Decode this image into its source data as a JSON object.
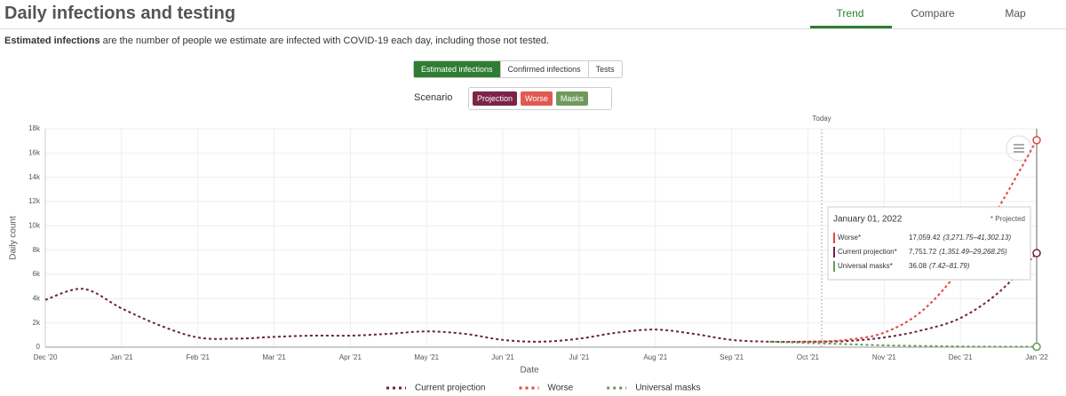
{
  "header": {
    "title": "Daily infections and testing",
    "tabs": [
      "Trend",
      "Compare",
      "Map"
    ]
  },
  "description": {
    "bold": "Estimated infections",
    "rest": " are the number of people we estimate are infected with COVID-19 each day, including those not tested."
  },
  "toggle": [
    "Estimated infections",
    "Confirmed infections",
    "Tests"
  ],
  "scenario": {
    "label": "Scenario",
    "chips": [
      {
        "text": "Projection",
        "color": "#7b2448"
      },
      {
        "text": "Worse",
        "color": "#e05a50"
      },
      {
        "text": "Masks",
        "color": "#6f9a5c"
      }
    ]
  },
  "chart_data": {
    "type": "line",
    "x_label": "Date",
    "y_label": "Daily count",
    "today_label": "Today",
    "x": [
      "Dec '20",
      null,
      "Jan '21",
      null,
      "Feb '21",
      null,
      "Mar '21",
      null,
      "Apr '21",
      null,
      "May '21",
      null,
      "Jun '21",
      null,
      "Jul '21",
      null,
      "Aug '21",
      null,
      "Sep '21",
      null,
      "Oct '21",
      null,
      "Nov '21",
      null,
      "Dec '21",
      null,
      "Jan '22"
    ],
    "ylim": [
      0,
      18000
    ],
    "yticks": [
      0,
      {
        "value": 2000,
        "label": "2k"
      },
      {
        "value": 4000,
        "label": "4k"
      },
      {
        "value": 6000,
        "label": "6k"
      },
      {
        "value": 8000,
        "label": "8k"
      },
      {
        "value": 10000,
        "label": "10k"
      },
      {
        "value": 12000,
        "label": "12k"
      },
      {
        "value": 14000,
        "label": "14k"
      },
      {
        "value": 16000,
        "label": "16k"
      },
      {
        "value": 18000,
        "label": "18k"
      }
    ],
    "grid": true,
    "series": [
      {
        "name": "Current projection",
        "color": "#6d2140",
        "values": [
          3900,
          4800,
          3200,
          1800,
          800,
          700,
          850,
          950,
          950,
          1100,
          1300,
          1100,
          600,
          450,
          700,
          1200,
          1450,
          1100,
          600,
          450,
          450,
          500,
          800,
          1400,
          2400,
          4500,
          7751.72
        ]
      },
      {
        "name": "Worse",
        "color": "#e0453f",
        "values": [
          null,
          null,
          null,
          null,
          null,
          null,
          null,
          null,
          null,
          null,
          null,
          null,
          null,
          null,
          null,
          null,
          null,
          null,
          null,
          450,
          450,
          600,
          1200,
          3000,
          6500,
          11500,
          17059.42
        ]
      },
      {
        "name": "Universal masks",
        "color": "#6a9a55",
        "values": [
          null,
          null,
          null,
          null,
          null,
          null,
          null,
          null,
          null,
          null,
          null,
          null,
          null,
          null,
          null,
          null,
          null,
          null,
          null,
          450,
          350,
          250,
          150,
          100,
          60,
          40,
          36.08
        ]
      }
    ]
  },
  "tooltip": {
    "date": "January 01, 2022",
    "note": "* Projected",
    "rows": [
      {
        "name": "Worse*",
        "value": "17,059.42",
        "range": "(3,271.75–41,302.13)"
      },
      {
        "name": "Current projection*",
        "value": "7,751.72",
        "range": "(1,351.49–29,268.25)"
      },
      {
        "name": "Universal masks*",
        "value": "36.08",
        "range": "(7.42–81.79)"
      }
    ]
  }
}
